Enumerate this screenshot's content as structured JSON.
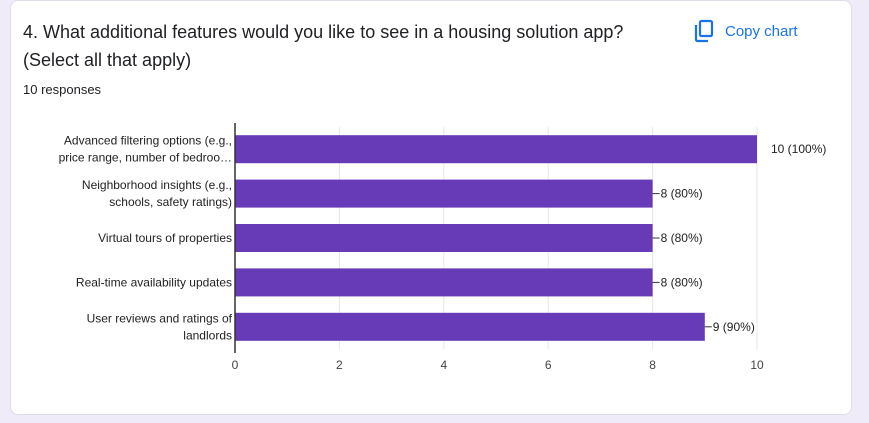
{
  "card": {
    "question": "4. What additional features would you like to see in a housing solution app? (Select all that apply)",
    "responses": "10 responses",
    "copy_label": "Copy chart",
    "copy_icon": "copy-icon"
  },
  "colors": {
    "bar": "#673ab7",
    "accent": "#1a73e8",
    "grid": "#e6e6e6",
    "axis": "#333333"
  },
  "chart_data": {
    "type": "bar",
    "orientation": "horizontal",
    "categories": [
      [
        "Advanced filtering options (e.g.,",
        "price range, number of bedroo…"
      ],
      [
        "Neighborhood insights (e.g.,",
        "schools, safety ratings)"
      ],
      [
        "Virtual tours of properties"
      ],
      [
        "Real-time availability updates"
      ],
      [
        "User reviews and ratings of",
        "landlords"
      ]
    ],
    "values": [
      10,
      8,
      8,
      8,
      9
    ],
    "value_labels": [
      "10 (100%)",
      "8 (80%)",
      "8 (80%)",
      "8 (80%)",
      "9 (90%)"
    ],
    "xlim": [
      0,
      10
    ],
    "xticks": [
      "0",
      "2",
      "4",
      "6",
      "8",
      "10"
    ],
    "grid": true
  }
}
